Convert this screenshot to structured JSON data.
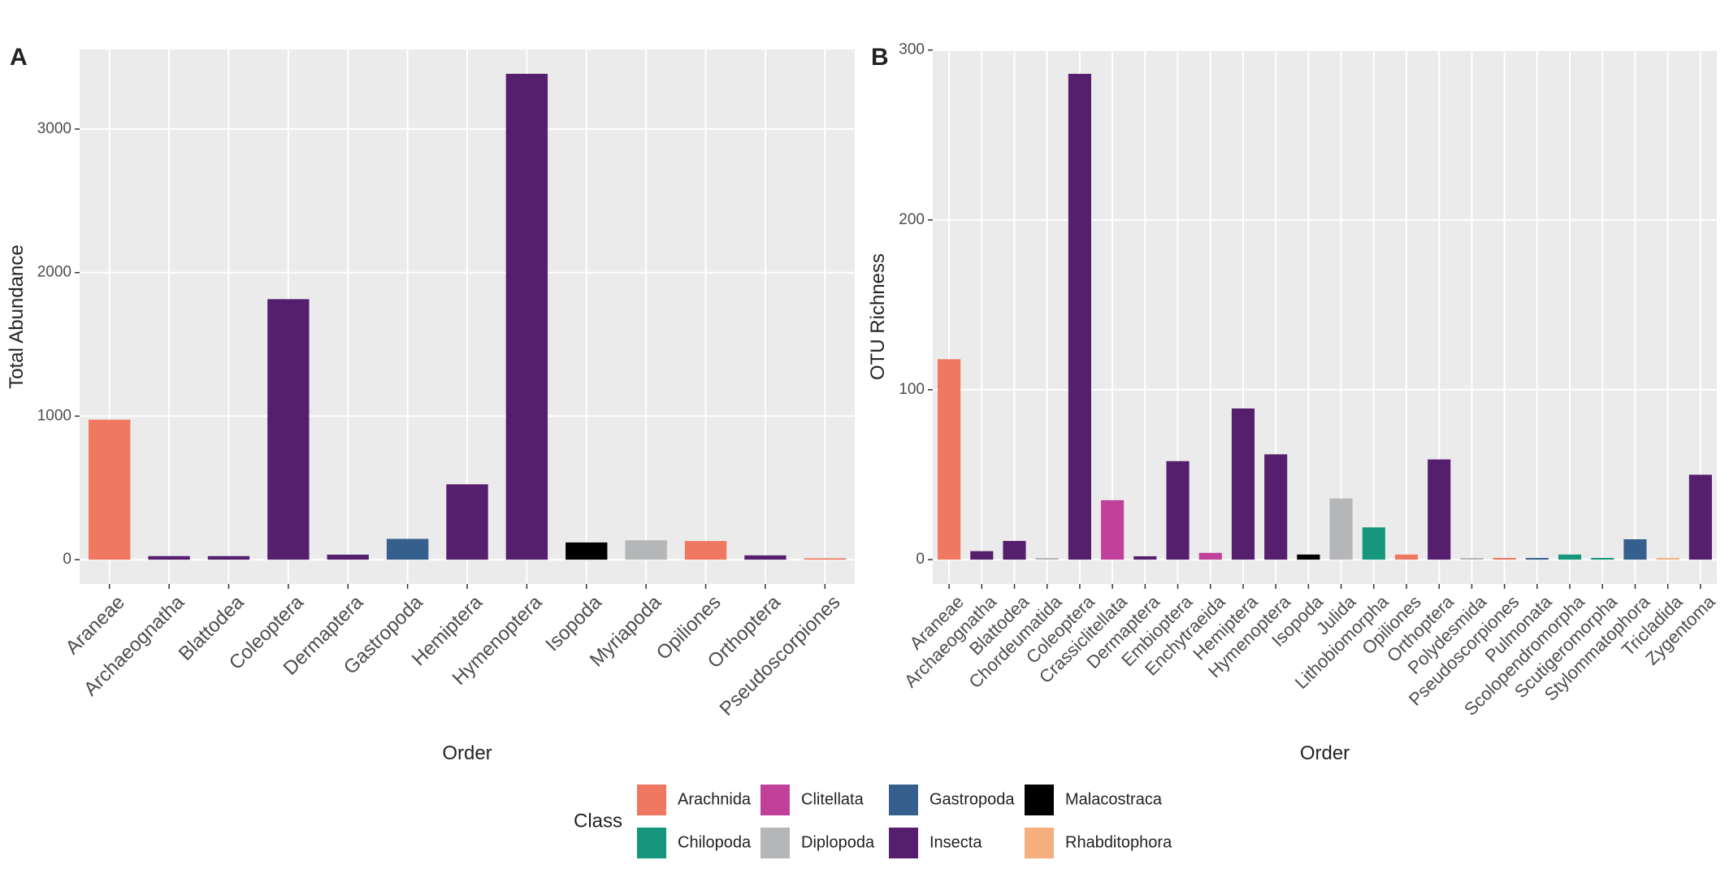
{
  "chart_data": [
    {
      "type": "bar",
      "label": "A",
      "ylabel": "Total Abundance",
      "xlabel": "Order",
      "categories": [
        "Araneae",
        "Archaeognatha",
        "Blattodea",
        "Coleoptera",
        "Dermaptera",
        "Gastropoda",
        "Hemiptera",
        "Hymenoptera",
        "Isopoda",
        "Myriapoda",
        "Opiliones",
        "Orthoptera",
        "Pseudoscorpiones"
      ],
      "classes": [
        "Arachnida",
        "Insecta",
        "Insecta",
        "Insecta",
        "Insecta",
        "Gastropoda",
        "Insecta",
        "Insecta",
        "Malacostraca",
        "Diplopoda",
        "Arachnida",
        "Insecta",
        "Arachnida"
      ],
      "values": [
        975,
        25,
        25,
        1815,
        35,
        145,
        525,
        3385,
        120,
        135,
        130,
        30,
        10
      ],
      "ylim": [
        -169,
        3554
      ],
      "yticks": [
        0,
        1000,
        2000,
        3000
      ],
      "grid": true
    },
    {
      "type": "bar",
      "label": "B",
      "ylabel": "OTU Richness",
      "xlabel": "Order",
      "categories": [
        "Araneae",
        "Archaeognatha",
        "Blattodea",
        "Chordeumatida",
        "Coleoptera",
        "Crassiclitellata",
        "Dermaptera",
        "Embioptera",
        "Enchytraeida",
        "Hemiptera",
        "Hymenoptera",
        "Isopoda",
        "Julida",
        "Lithobiomorpha",
        "Opiliones",
        "Orthoptera",
        "Polydesmida",
        "Pseudoscorpiones",
        "Pulmonata",
        "Scolopendromorpha",
        "Scutigeromorpha",
        "Stylommatophora",
        "Tricladida",
        "Zygentoma"
      ],
      "classes": [
        "Arachnida",
        "Insecta",
        "Insecta",
        "Diplopoda",
        "Insecta",
        "Clitellata",
        "Insecta",
        "Insecta",
        "Clitellata",
        "Insecta",
        "Insecta",
        "Malacostraca",
        "Diplopoda",
        "Chilopoda",
        "Arachnida",
        "Insecta",
        "Diplopoda",
        "Arachnida",
        "Gastropoda",
        "Chilopoda",
        "Chilopoda",
        "Gastropoda",
        "Rhabditophora",
        "Insecta"
      ],
      "values": [
        118,
        5,
        11,
        1,
        286,
        35,
        2,
        58,
        4,
        89,
        62,
        3,
        36,
        19,
        3,
        59,
        1,
        1,
        1,
        3,
        1,
        12,
        1,
        50
      ],
      "ylim": [
        -14.3,
        300.3
      ],
      "yticks": [
        0,
        100,
        200,
        300
      ],
      "grid": true
    }
  ],
  "legend": {
    "title": "Class",
    "items": [
      {
        "name": "Arachnida",
        "color": "#f07860"
      },
      {
        "name": "Chilopoda",
        "color": "#16967a"
      },
      {
        "name": "Clitellata",
        "color": "#c0409a"
      },
      {
        "name": "Diplopoda",
        "color": "#b5b6b8"
      },
      {
        "name": "Gastropoda",
        "color": "#35608d"
      },
      {
        "name": "Insecta",
        "color": "#561f6e"
      },
      {
        "name": "Malacostraca",
        "color": "#000000"
      },
      {
        "name": "Rhabditophora",
        "color": "#f5ae7e"
      }
    ]
  }
}
